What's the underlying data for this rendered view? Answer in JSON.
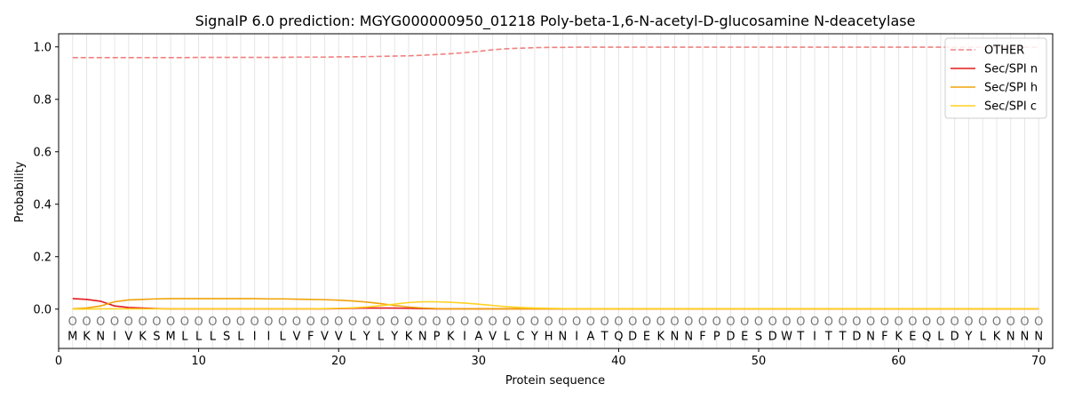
{
  "chart_data": {
    "type": "line",
    "title": "SignalP 6.0 prediction: MGYG000000950_01218 Poly-beta-1,6-N-acetyl-D-glucosamine N-deacetylase",
    "xlabel": "Protein sequence",
    "ylabel": "Probability",
    "xlim": [
      0,
      71
    ],
    "ylim": [
      -0.15,
      1.05
    ],
    "xticks": [
      0,
      10,
      20,
      30,
      40,
      50,
      60,
      70
    ],
    "yticks": [
      0.0,
      0.2,
      0.4,
      0.6,
      0.8,
      1.0
    ],
    "grid": "vertical lines at each residue",
    "legend_position": "top-right",
    "sequence": [
      "M",
      "K",
      "N",
      "I",
      "V",
      "K",
      "S",
      "M",
      "L",
      "L",
      "L",
      "S",
      "L",
      "I",
      "I",
      "L",
      "V",
      "F",
      "V",
      "V",
      "L",
      "Y",
      "L",
      "Y",
      "K",
      "N",
      "P",
      "K",
      "I",
      "A",
      "V",
      "L",
      "C",
      "Y",
      "H",
      "N",
      "I",
      "A",
      "T",
      "Q",
      "D",
      "E",
      "K",
      "N",
      "N",
      "F",
      "P",
      "D",
      "E",
      "S",
      "D",
      "W",
      "T",
      "I",
      "T",
      "T",
      "D",
      "N",
      "F",
      "K",
      "E",
      "Q",
      "L",
      "D",
      "Y",
      "L",
      "K",
      "N",
      "N",
      "N"
    ],
    "state_labels": [
      "O",
      "O",
      "O",
      "O",
      "O",
      "O",
      "O",
      "O",
      "O",
      "O",
      "O",
      "O",
      "O",
      "O",
      "O",
      "O",
      "O",
      "O",
      "O",
      "O",
      "O",
      "O",
      "O",
      "O",
      "O",
      "O",
      "O",
      "O",
      "O",
      "O",
      "O",
      "O",
      "O",
      "O",
      "O",
      "O",
      "O",
      "O",
      "O",
      "O",
      "O",
      "O",
      "O",
      "O",
      "O",
      "O",
      "O",
      "O",
      "O",
      "O",
      "O",
      "O",
      "O",
      "O",
      "O",
      "O",
      "O",
      "O",
      "O",
      "O",
      "O",
      "O",
      "O",
      "O",
      "O",
      "O",
      "O",
      "O",
      "O",
      "O"
    ],
    "x": [
      1,
      2,
      3,
      4,
      5,
      6,
      7,
      8,
      9,
      10,
      11,
      12,
      13,
      14,
      15,
      16,
      17,
      18,
      19,
      20,
      21,
      22,
      23,
      24,
      25,
      26,
      27,
      28,
      29,
      30,
      31,
      32,
      33,
      34,
      35,
      36,
      37,
      38,
      39,
      40,
      41,
      42,
      43,
      44,
      45,
      46,
      47,
      48,
      49,
      50,
      51,
      52,
      53,
      54,
      55,
      56,
      57,
      58,
      59,
      60,
      61,
      62,
      63,
      64,
      65,
      66,
      67,
      68,
      69,
      70
    ],
    "series": [
      {
        "name": "OTHER",
        "color": "#f08080",
        "dash": "dashed",
        "values": [
          0.959,
          0.959,
          0.959,
          0.959,
          0.959,
          0.959,
          0.959,
          0.959,
          0.959,
          0.96,
          0.96,
          0.96,
          0.96,
          0.96,
          0.96,
          0.96,
          0.961,
          0.961,
          0.961,
          0.962,
          0.962,
          0.963,
          0.964,
          0.965,
          0.966,
          0.968,
          0.971,
          0.974,
          0.978,
          0.983,
          0.989,
          0.993,
          0.995,
          0.997,
          0.998,
          0.998,
          0.999,
          0.999,
          0.999,
          0.999,
          0.999,
          0.999,
          0.999,
          0.999,
          0.999,
          0.999,
          0.999,
          0.999,
          0.999,
          0.999,
          0.999,
          0.999,
          0.999,
          0.999,
          0.999,
          0.999,
          0.999,
          0.999,
          0.999,
          0.999,
          0.999,
          0.999,
          0.999,
          0.999,
          0.999,
          0.999,
          0.999,
          0.999,
          0.999,
          0.999
        ]
      },
      {
        "name": "Sec/SPI n",
        "color": "#e31a1c",
        "dash": "solid",
        "values": [
          0.04,
          0.037,
          0.03,
          0.012,
          0.006,
          0.004,
          0.002,
          0.001,
          0.001,
          0.001,
          0.001,
          0.001,
          0.001,
          0.001,
          0.001,
          0.001,
          0.001,
          0.001,
          0.001,
          0.002,
          0.003,
          0.004,
          0.004,
          0.004,
          0.003,
          0.002,
          0.001,
          0.001,
          0.001,
          0.001,
          0.001,
          0.001,
          0.001,
          0.001,
          0.001,
          0.001,
          0.001,
          0.001,
          0.001,
          0.001,
          0.001,
          0.001,
          0.001,
          0.001,
          0.001,
          0.001,
          0.001,
          0.001,
          0.001,
          0.001,
          0.001,
          0.001,
          0.001,
          0.001,
          0.001,
          0.001,
          0.001,
          0.001,
          0.001,
          0.001,
          0.001,
          0.001,
          0.001,
          0.001,
          0.001,
          0.001,
          0.001,
          0.001,
          0.001,
          0.001
        ]
      },
      {
        "name": "Sec/SPI h",
        "color": "#f0a30a",
        "dash": "solid",
        "values": [
          0.001,
          0.004,
          0.012,
          0.028,
          0.035,
          0.037,
          0.039,
          0.04,
          0.04,
          0.04,
          0.04,
          0.04,
          0.04,
          0.04,
          0.039,
          0.039,
          0.038,
          0.037,
          0.036,
          0.034,
          0.031,
          0.027,
          0.021,
          0.014,
          0.008,
          0.004,
          0.002,
          0.001,
          0.001,
          0.001,
          0.001,
          0.001,
          0.001,
          0.001,
          0.001,
          0.001,
          0.001,
          0.001,
          0.001,
          0.001,
          0.001,
          0.001,
          0.001,
          0.001,
          0.001,
          0.001,
          0.001,
          0.001,
          0.001,
          0.001,
          0.001,
          0.001,
          0.001,
          0.001,
          0.001,
          0.001,
          0.001,
          0.001,
          0.001,
          0.001,
          0.001,
          0.001,
          0.001,
          0.001,
          0.001,
          0.001,
          0.001,
          0.001,
          0.001,
          0.001
        ]
      },
      {
        "name": "Sec/SPI c",
        "color": "#ffd21f",
        "dash": "solid",
        "values": [
          0.0,
          0.0,
          0.001,
          0.001,
          0.001,
          0.001,
          0.001,
          0.001,
          0.001,
          0.001,
          0.001,
          0.001,
          0.001,
          0.001,
          0.001,
          0.001,
          0.001,
          0.001,
          0.002,
          0.003,
          0.005,
          0.008,
          0.013,
          0.019,
          0.025,
          0.028,
          0.028,
          0.026,
          0.023,
          0.019,
          0.014,
          0.009,
          0.006,
          0.004,
          0.003,
          0.002,
          0.001,
          0.001,
          0.001,
          0.001,
          0.001,
          0.001,
          0.001,
          0.001,
          0.001,
          0.001,
          0.001,
          0.001,
          0.001,
          0.001,
          0.001,
          0.001,
          0.001,
          0.001,
          0.001,
          0.001,
          0.001,
          0.001,
          0.001,
          0.001,
          0.001,
          0.001,
          0.001,
          0.001,
          0.001,
          0.001,
          0.001,
          0.001,
          0.001,
          0.001
        ]
      }
    ]
  }
}
